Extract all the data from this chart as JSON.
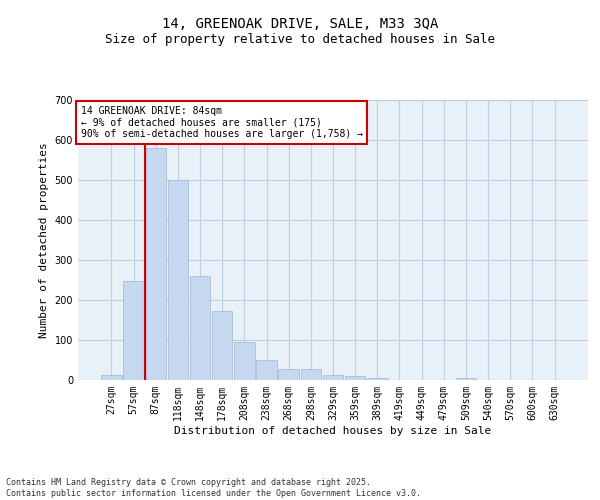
{
  "title1": "14, GREENOAK DRIVE, SALE, M33 3QA",
  "title2": "Size of property relative to detached houses in Sale",
  "xlabel": "Distribution of detached houses by size in Sale",
  "ylabel": "Number of detached properties",
  "categories": [
    "27sqm",
    "57sqm",
    "87sqm",
    "118sqm",
    "148sqm",
    "178sqm",
    "208sqm",
    "238sqm",
    "268sqm",
    "298sqm",
    "329sqm",
    "359sqm",
    "389sqm",
    "419sqm",
    "449sqm",
    "479sqm",
    "509sqm",
    "540sqm",
    "570sqm",
    "600sqm",
    "630sqm"
  ],
  "values": [
    12,
    248,
    580,
    500,
    260,
    172,
    95,
    50,
    27,
    27,
    12,
    10,
    4,
    0,
    0,
    0,
    4,
    0,
    0,
    0,
    0
  ],
  "bar_color": "#c5d8f0",
  "bar_edge_color": "#a0b8d0",
  "vline_x": 1.5,
  "vline_color": "#cc0000",
  "annotation_text": "14 GREENOAK DRIVE: 84sqm\n← 9% of detached houses are smaller (175)\n90% of semi-detached houses are larger (1,758) →",
  "annotation_box_color": "#ffffff",
  "annotation_box_edge": "#cc0000",
  "ylim": [
    0,
    700
  ],
  "yticks": [
    0,
    100,
    200,
    300,
    400,
    500,
    600,
    700
  ],
  "grid_color": "#c0cfe0",
  "background_color": "#e8f0f8",
  "footer": "Contains HM Land Registry data © Crown copyright and database right 2025.\nContains public sector information licensed under the Open Government Licence v3.0.",
  "title_fontsize": 10,
  "subtitle_fontsize": 9,
  "axis_label_fontsize": 8,
  "tick_fontsize": 7,
  "annotation_fontsize": 7,
  "footer_fontsize": 6
}
